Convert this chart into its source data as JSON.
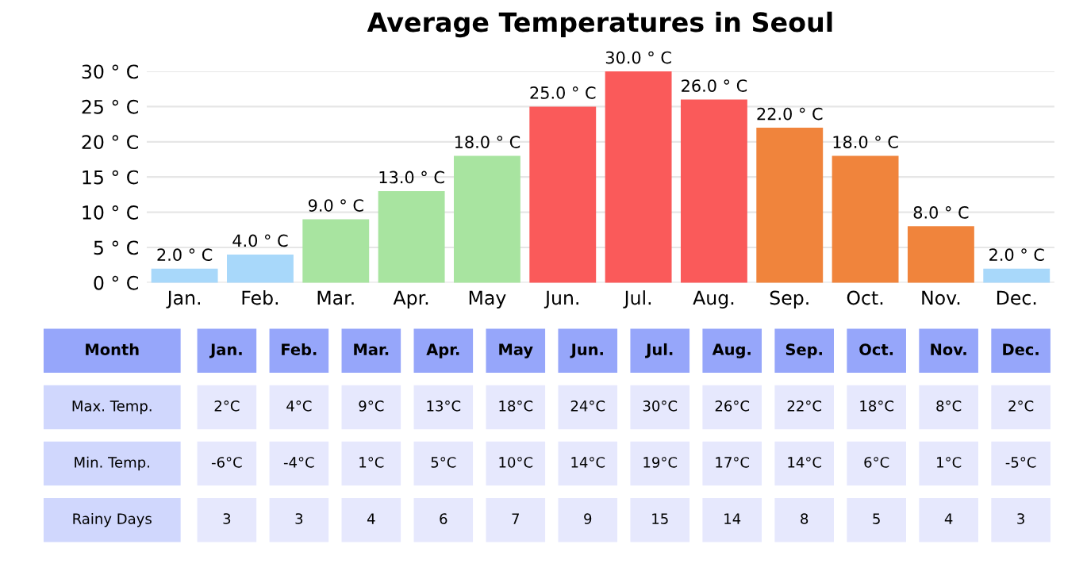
{
  "chart_data": [
    {
      "type": "bar",
      "title": "Average Temperatures in Seoul",
      "categories": [
        "Jan.",
        "Feb.",
        "Mar.",
        "Apr.",
        "May",
        "Jun.",
        "Jul.",
        "Aug.",
        "Sep.",
        "Oct.",
        "Nov.",
        "Dec."
      ],
      "values": [
        2,
        4,
        9,
        13,
        18,
        25,
        30,
        26,
        22,
        18,
        8,
        2
      ],
      "colors": [
        "#a8d8fa",
        "#a8d8fa",
        "#a8e4a0",
        "#a8e4a0",
        "#a8e4a0",
        "#fa5a5a",
        "#fa5a5a",
        "#fa5a5a",
        "#f0843c",
        "#f0843c",
        "#f0843c",
        "#a8d8fa"
      ],
      "value_labels": [
        "2.0 ° C",
        "4.0 ° C",
        "9.0 ° C",
        "13.0 ° C",
        "18.0 ° C",
        "25.0 ° C",
        "30.0 ° C",
        "26.0 ° C",
        "22.0 ° C",
        "18.0 ° C",
        "8.0 ° C",
        "2.0 ° C"
      ],
      "ylim": [
        0,
        30
      ],
      "yticks": [
        {
          "value": 0,
          "label": "0 ° C"
        },
        {
          "value": 5,
          "label": "5 ° C"
        },
        {
          "value": 10,
          "label": "10 ° C"
        },
        {
          "value": 15,
          "label": "15 ° C"
        },
        {
          "value": 20,
          "label": "20 ° C"
        },
        {
          "value": 25,
          "label": "25 ° C"
        },
        {
          "value": 30,
          "label": "30 ° C"
        }
      ],
      "grid": "y",
      "legend": false
    },
    {
      "type": "other",
      "annotations": [
        "Month"
      ],
      "categories": [
        "Jan.",
        "Feb.",
        "Mar.",
        "Apr.",
        "May",
        "Jun.",
        "Jul.",
        "Aug.",
        "Sep.",
        "Oct.",
        "Nov.",
        "Dec."
      ],
      "y_categories": [
        "Max. Temp.",
        "Min. Temp.",
        "Rainy Days"
      ],
      "cell_labels": [
        [
          "2°C",
          "4°C",
          "9°C",
          "13°C",
          "18°C",
          "24°C",
          "30°C",
          "26°C",
          "22°C",
          "18°C",
          "8°C",
          "2°C"
        ],
        [
          "-6°C",
          "-4°C",
          "1°C",
          "5°C",
          "10°C",
          "14°C",
          "19°C",
          "17°C",
          "14°C",
          "6°C",
          "1°C",
          "-5°C"
        ],
        [
          "3",
          "3",
          "4",
          "6",
          "7",
          "9",
          "15",
          "14",
          "8",
          "5",
          "4",
          "3"
        ]
      ]
    }
  ]
}
